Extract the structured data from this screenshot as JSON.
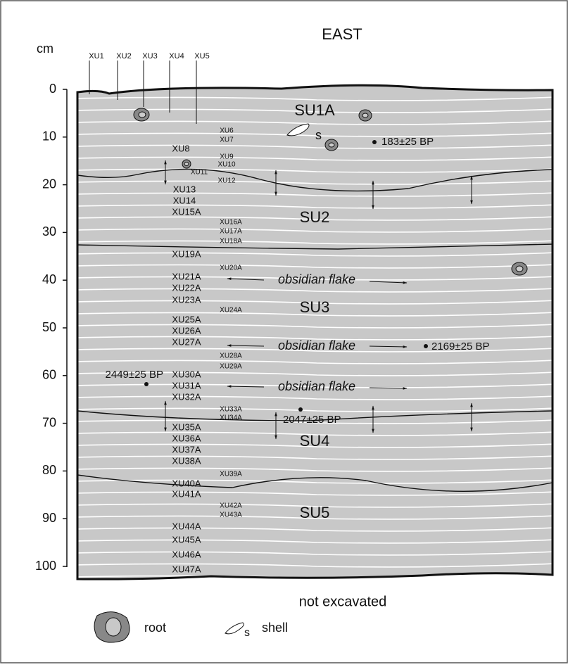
{
  "title": "EAST",
  "axis": {
    "unit": "cm",
    "ticks": [
      0,
      10,
      20,
      30,
      40,
      50,
      60,
      70,
      80,
      90,
      100
    ]
  },
  "excavation_units": [
    "XU1",
    "XU2",
    "XU3",
    "XU4",
    "XU5",
    "XU6",
    "XU7",
    "XU8",
    "XU9",
    "XU10",
    "XU11",
    "XU12",
    "XU13",
    "XU14",
    "XU15A",
    "XU16A",
    "XU17A",
    "XU18A",
    "XU19A",
    "XU20A",
    "XU21A",
    "XU22A",
    "XU23A",
    "XU24A",
    "XU25A",
    "XU26A",
    "XU27A",
    "XU28A",
    "XU29A",
    "XU30A",
    "XU31A",
    "XU32A",
    "XU33A",
    "XU34A",
    "XU35A",
    "XU36A",
    "XU37A",
    "XU38A",
    "XU39A",
    "XU40A",
    "XU41A",
    "XU42A",
    "XU43A",
    "XU44A",
    "XU45A",
    "XU46A",
    "XU47A"
  ],
  "stratigraphic_units": [
    "SU1A",
    "SU2",
    "SU3",
    "SU4",
    "SU5"
  ],
  "dates": [
    "183±25 BP",
    "2169±25 BP",
    "2449±25 BP",
    "2047±25 BP"
  ],
  "finds": [
    "obsidian flake",
    "obsidian flake",
    "obsidian flake"
  ],
  "shell_mark": "s",
  "bottom_note": "not excavated",
  "legend": {
    "items": [
      {
        "label": "root"
      },
      {
        "label": "shell",
        "symbol_label": "s"
      }
    ]
  }
}
